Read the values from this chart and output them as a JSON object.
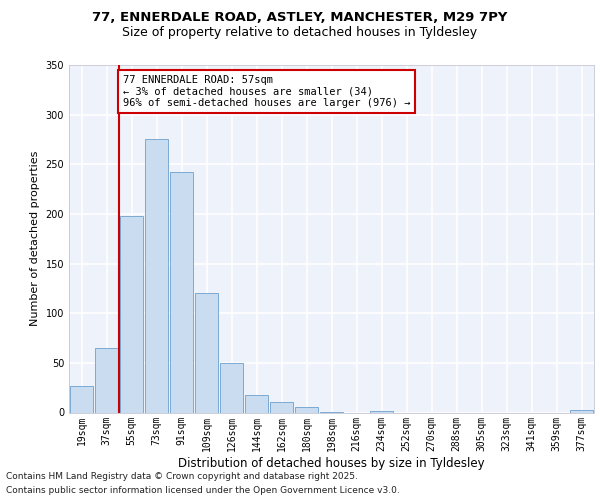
{
  "title_line1": "77, ENNERDALE ROAD, ASTLEY, MANCHESTER, M29 7PY",
  "title_line2": "Size of property relative to detached houses in Tyldesley",
  "xlabel": "Distribution of detached houses by size in Tyldesley",
  "ylabel": "Number of detached properties",
  "categories": [
    "19sqm",
    "37sqm",
    "55sqm",
    "73sqm",
    "91sqm",
    "109sqm",
    "126sqm",
    "144sqm",
    "162sqm",
    "180sqm",
    "198sqm",
    "216sqm",
    "234sqm",
    "252sqm",
    "270sqm",
    "288sqm",
    "305sqm",
    "323sqm",
    "341sqm",
    "359sqm",
    "377sqm"
  ],
  "bar_heights": [
    27,
    65,
    198,
    275,
    242,
    120,
    50,
    18,
    11,
    6,
    1,
    0,
    2,
    0,
    0,
    0,
    0,
    0,
    0,
    0,
    3
  ],
  "bar_color": "#c9dcf0",
  "bar_edge_color": "#7aaad4",
  "vline_color": "#cc0000",
  "vline_xindex": 1.5,
  "annotation_text": "77 ENNERDALE ROAD: 57sqm\n← 3% of detached houses are smaller (34)\n96% of semi-detached houses are larger (976) →",
  "annotation_box_color": "white",
  "annotation_box_edge": "#cc0000",
  "ylim": [
    0,
    350
  ],
  "yticks": [
    0,
    50,
    100,
    150,
    200,
    250,
    300,
    350
  ],
  "footer_line1": "Contains HM Land Registry data © Crown copyright and database right 2025.",
  "footer_line2": "Contains public sector information licensed under the Open Government Licence v3.0.",
  "bg_color": "#eef2fa",
  "grid_color": "#ffffff",
  "title_fontsize": 9.5,
  "subtitle_fontsize": 9,
  "ylabel_fontsize": 8,
  "xlabel_fontsize": 8.5,
  "tick_fontsize": 7,
  "annotation_fontsize": 7.5,
  "footer_fontsize": 6.5
}
